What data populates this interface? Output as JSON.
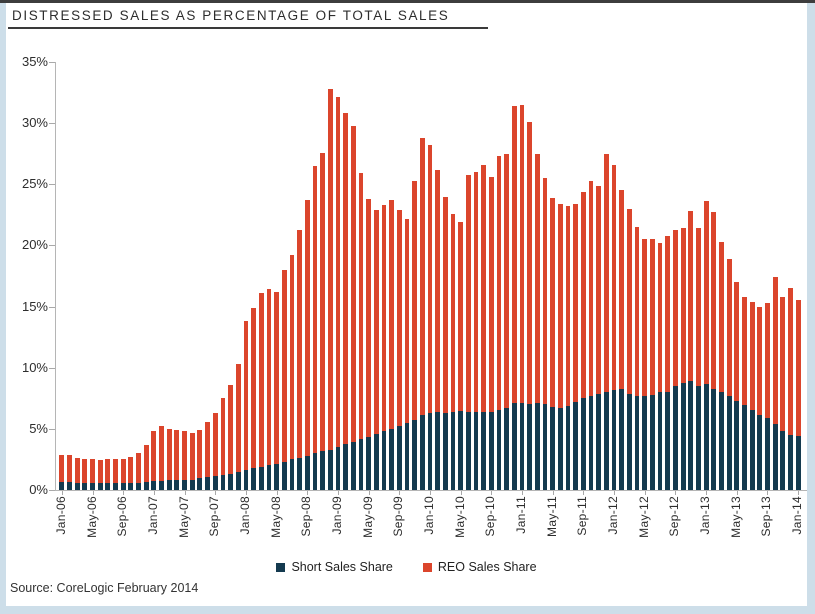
{
  "page": {
    "title": "DISTRESSED SALES AS PERCENTAGE OF TOTAL SALES",
    "source": "Source: CoreLogic February 2014"
  },
  "legend": {
    "short_label": "Short Sales Share",
    "reo_label": "REO Sales Share"
  },
  "colors": {
    "short": "#143a4f",
    "reo": "#db452c",
    "page_background": "#cddee9",
    "axis": "#b5b5b5",
    "text": "#2d2d2d"
  },
  "chart_data": {
    "type": "bar",
    "stacked": true,
    "title": "DISTRESSED SALES AS PERCENTAGE OF TOTAL SALES",
    "xlabel": "",
    "ylabel": "",
    "ylim": [
      0,
      35
    ],
    "ytick_step": 5,
    "ytick_labels": [
      "0%",
      "5%",
      "10%",
      "15%",
      "20%",
      "25%",
      "30%",
      "35%"
    ],
    "grid": false,
    "legend_position": "bottom",
    "x_label_every": 4,
    "categories": [
      "Jan-06",
      "Feb-06",
      "Mar-06",
      "Apr-06",
      "May-06",
      "Jun-06",
      "Jul-06",
      "Aug-06",
      "Sep-06",
      "Oct-06",
      "Nov-06",
      "Dec-06",
      "Jan-07",
      "Feb-07",
      "Mar-07",
      "Apr-07",
      "May-07",
      "Jun-07",
      "Jul-07",
      "Aug-07",
      "Sep-07",
      "Oct-07",
      "Nov-07",
      "Dec-07",
      "Jan-08",
      "Feb-08",
      "Mar-08",
      "Apr-08",
      "May-08",
      "Jun-08",
      "Jul-08",
      "Aug-08",
      "Sep-08",
      "Oct-08",
      "Nov-08",
      "Dec-08",
      "Jan-09",
      "Feb-09",
      "Mar-09",
      "Apr-09",
      "May-09",
      "Jun-09",
      "Jul-09",
      "Aug-09",
      "Sep-09",
      "Oct-09",
      "Nov-09",
      "Dec-09",
      "Jan-10",
      "Feb-10",
      "Mar-10",
      "Apr-10",
      "May-10",
      "Jun-10",
      "Jul-10",
      "Aug-10",
      "Sep-10",
      "Oct-10",
      "Nov-10",
      "Dec-10",
      "Jan-11",
      "Feb-11",
      "Mar-11",
      "Apr-11",
      "May-11",
      "Jun-11",
      "Jul-11",
      "Aug-11",
      "Sep-11",
      "Oct-11",
      "Nov-11",
      "Dec-11",
      "Jan-12",
      "Feb-12",
      "Mar-12",
      "Apr-12",
      "May-12",
      "Jun-12",
      "Jul-12",
      "Aug-12",
      "Sep-12",
      "Oct-12",
      "Nov-12",
      "Dec-12",
      "Jan-13",
      "Feb-13",
      "Mar-13",
      "Apr-13",
      "May-13",
      "Jun-13",
      "Jul-13",
      "Aug-13",
      "Sep-13",
      "Oct-13",
      "Nov-13",
      "Dec-13",
      "Jan-14"
    ],
    "series": [
      {
        "name": "Short Sales Share",
        "color": "#143a4f",
        "values": [
          0.65,
          0.65,
          0.6,
          0.6,
          0.6,
          0.6,
          0.6,
          0.6,
          0.6,
          0.6,
          0.6,
          0.65,
          0.7,
          0.75,
          0.8,
          0.8,
          0.8,
          0.85,
          0.95,
          1.1,
          1.15,
          1.25,
          1.35,
          1.5,
          1.65,
          1.8,
          1.9,
          2.05,
          2.15,
          2.3,
          2.5,
          2.65,
          2.8,
          3.0,
          3.15,
          3.3,
          3.55,
          3.75,
          3.95,
          4.15,
          4.35,
          4.6,
          4.8,
          5.0,
          5.2,
          5.45,
          5.7,
          6.1,
          6.3,
          6.35,
          6.3,
          6.35,
          6.5,
          6.4,
          6.35,
          6.4,
          6.35,
          6.55,
          6.7,
          7.15,
          7.1,
          7.0,
          7.1,
          7.05,
          6.8,
          6.7,
          6.9,
          7.2,
          7.5,
          7.7,
          7.85,
          8.0,
          8.2,
          8.25,
          7.85,
          7.65,
          7.7,
          7.75,
          8.0,
          8.05,
          8.5,
          8.75,
          8.9,
          8.5,
          8.7,
          8.3,
          8.05,
          7.65,
          7.3,
          6.95,
          6.55,
          6.1,
          5.9,
          5.4,
          4.8,
          4.5,
          4.4
        ]
      },
      {
        "name": "REO Sales Share",
        "color": "#db452c",
        "values": [
          2.25,
          2.2,
          2.0,
          1.95,
          1.9,
          1.85,
          1.9,
          1.95,
          1.9,
          2.1,
          2.4,
          3.05,
          4.1,
          4.45,
          4.2,
          4.1,
          4.05,
          3.85,
          3.95,
          4.5,
          5.15,
          6.25,
          7.25,
          8.8,
          12.15,
          13.1,
          14.2,
          14.35,
          14.05,
          15.7,
          16.7,
          18.65,
          20.9,
          23.5,
          24.45,
          29.5,
          28.55,
          27.05,
          25.85,
          21.75,
          19.45,
          18.3,
          18.5,
          18.7,
          17.7,
          16.75,
          19.6,
          22.7,
          21.9,
          19.85,
          17.7,
          16.25,
          15.4,
          19.4,
          19.65,
          20.2,
          19.25,
          20.75,
          20.8,
          24.25,
          24.4,
          23.1,
          20.4,
          18.45,
          17.1,
          16.7,
          16.3,
          16.2,
          16.9,
          17.6,
          17.05,
          19.5,
          18.4,
          16.25,
          15.15,
          13.85,
          12.8,
          12.75,
          12.2,
          12.75,
          12.8,
          12.65,
          13.9,
          12.9,
          14.9,
          14.4,
          12.25,
          11.25,
          9.7,
          8.85,
          8.85,
          8.9,
          9.4,
          12.0,
          11.0,
          12.0,
          11.1
        ]
      }
    ]
  }
}
